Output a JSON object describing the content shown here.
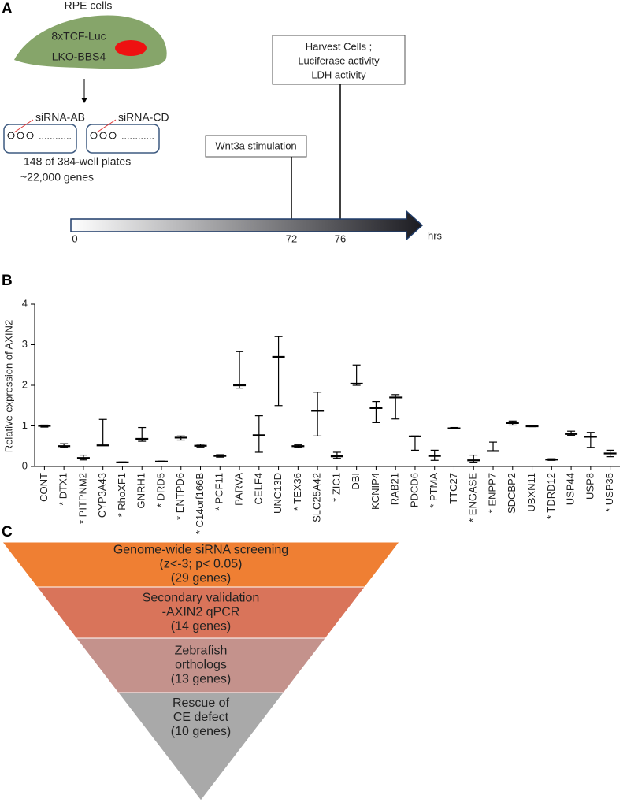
{
  "panel_labels": [
    "A",
    "B",
    "C"
  ],
  "panel_a": {
    "cell_title": "RPE cells",
    "cell_lines": [
      "8xTCF-Luc",
      "LKO-BBS4"
    ],
    "plates": [
      "siRNA-AB",
      "siRNA-CD"
    ],
    "plate_notes": [
      "148 of 384-well plates",
      "~22,000 genes"
    ],
    "step_1": "Wnt3a stimulation",
    "step_2": [
      "Harvest Cells ;",
      "Luciferase activity",
      "LDH activity"
    ],
    "timeline": [
      "0",
      "72",
      "76"
    ],
    "timeline_unit": "hrs"
  },
  "chart_data": {
    "type": "errorbar",
    "y_label": "Relative expression of AXIN2",
    "categories": [
      "CONT",
      "* DTX1",
      "* PITPNM2",
      "CYP3A43",
      "* RhoXF1",
      "GNRH1",
      "* DRD5",
      "* ENTPD6",
      "* C14orf166B",
      "* PCF11",
      "PARVA",
      "CELF4",
      "UNC13D",
      "* TEX36",
      "SLC25A42",
      "* ZIC1",
      "DBI",
      "KCNIP4",
      "RAB21",
      "PDCD6",
      "* PTMA",
      "TTC27",
      "* ENGASE",
      "* ENPP7",
      "SDCBP2",
      "UBXN11",
      "* TDRD12",
      "USP44",
      "USP8",
      "* USP35"
    ],
    "values": [
      1.0,
      0.5,
      0.21,
      0.52,
      0.1,
      0.68,
      0.12,
      0.71,
      0.51,
      0.26,
      2.0,
      0.77,
      2.7,
      0.5,
      1.37,
      0.25,
      2.04,
      1.44,
      1.7,
      0.74,
      0.26,
      0.94,
      0.15,
      0.38,
      1.07,
      0.99,
      0.17,
      0.8,
      0.73,
      0.32
    ],
    "lows": [
      0.97,
      0.47,
      0.16,
      0.52,
      0.09,
      0.62,
      0.11,
      0.65,
      0.48,
      0.23,
      1.93,
      0.35,
      1.5,
      0.47,
      0.75,
      0.2,
      2.0,
      1.08,
      1.17,
      0.4,
      0.15,
      0.93,
      0.09,
      0.38,
      1.02,
      0.98,
      0.15,
      0.77,
      0.47,
      0.24
    ],
    "highs": [
      1.02,
      0.56,
      0.28,
      1.16,
      0.11,
      0.96,
      0.13,
      0.75,
      0.55,
      0.29,
      2.83,
      1.25,
      3.2,
      0.53,
      1.83,
      0.35,
      2.5,
      1.6,
      1.77,
      0.75,
      0.4,
      0.96,
      0.28,
      0.6,
      1.12,
      1.0,
      0.19,
      0.87,
      0.84,
      0.4
    ],
    "color": "#000000",
    "ylim": [
      0,
      4
    ],
    "yticks": [
      0,
      1,
      2,
      3,
      4
    ]
  },
  "panel_c": {
    "levels": [
      {
        "lines": [
          "Genome-wide siRNA screening",
          "(z<-3; p< 0.05)",
          "(29 genes)"
        ],
        "color": "#ef7f33"
      },
      {
        "lines": [
          "Secondary validation",
          "-AXIN2 qPCR",
          "(14 genes)"
        ],
        "color": "#d9745a"
      },
      {
        "lines": [
          "Zebrafish",
          "orthologs",
          "(13 genes)"
        ],
        "color": "#c4928c"
      },
      {
        "lines": [
          "Rescue of",
          "CE defect",
          "(10 genes)"
        ],
        "color": "#a9a9a9"
      }
    ]
  }
}
